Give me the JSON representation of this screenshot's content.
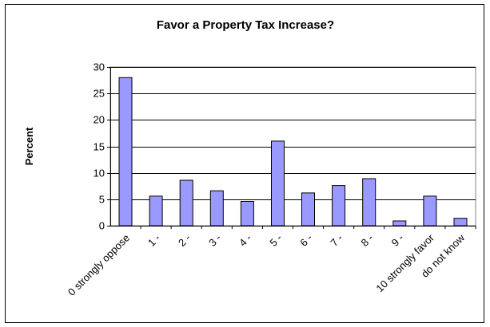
{
  "chart_data": {
    "type": "bar",
    "title": "Favor a Property Tax Increase?",
    "xlabel": "",
    "ylabel": "Percent",
    "categories": [
      "0 strongly oppose",
      "1 -",
      "2 -",
      "3 -",
      "4 -",
      "5 -",
      "6 -",
      "7 -",
      "8 -",
      "9 -",
      "10 strongly favor",
      "do not know"
    ],
    "values": [
      28.0,
      5.6,
      8.6,
      6.6,
      4.6,
      16.0,
      6.2,
      7.6,
      8.9,
      0.9,
      5.6,
      1.4
    ],
    "ylim": [
      0,
      30
    ],
    "yticks": [
      "0",
      "5",
      "10",
      "15",
      "20",
      "25",
      "30"
    ],
    "grid": true,
    "legend": "none",
    "bar_color": "#9999ff"
  }
}
